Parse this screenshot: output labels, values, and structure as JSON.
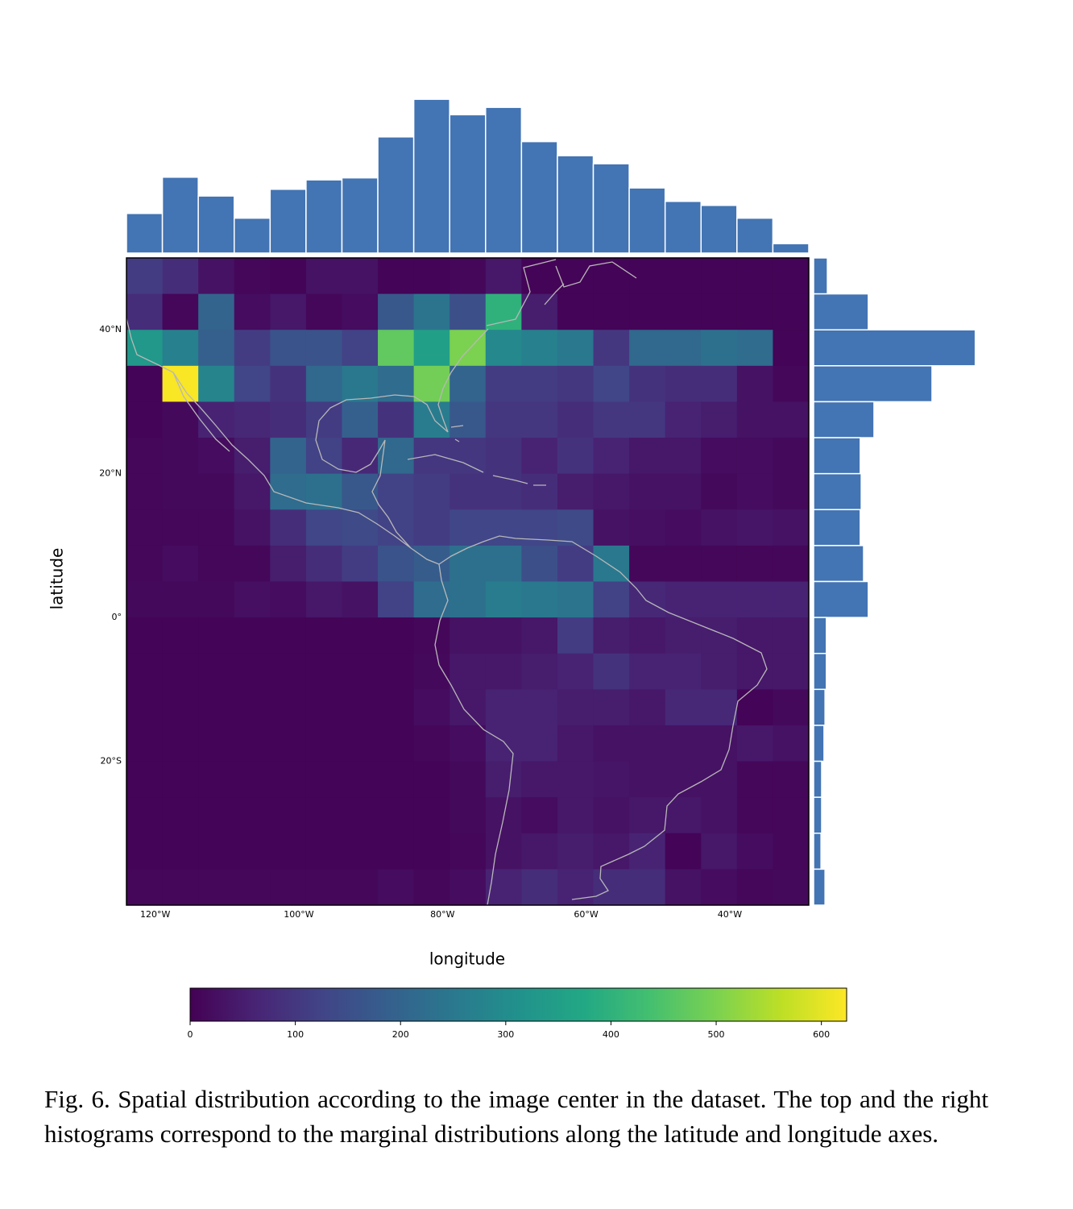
{
  "chart_data": [
    {
      "type": "heatmap",
      "x_label": "longitude",
      "y_label": "latitude",
      "xlim": [
        -124,
        -29
      ],
      "ylim": [
        -40,
        50
      ],
      "xticks": [
        {
          "value": -120,
          "label": "120°W"
        },
        {
          "value": -100,
          "label": "100°W"
        },
        {
          "value": -80,
          "label": "80°W"
        },
        {
          "value": -60,
          "label": "60°W"
        },
        {
          "value": -40,
          "label": "40°W"
        }
      ],
      "yticks": [
        {
          "value": 40,
          "label": "40°N"
        },
        {
          "value": 20,
          "label": "20°N"
        },
        {
          "value": 0,
          "label": "0°"
        },
        {
          "value": -20,
          "label": "20°S"
        }
      ],
      "x_bins": [
        -124,
        -119,
        -114,
        -109,
        -104,
        -99,
        -94,
        -89,
        -84,
        -79,
        -74,
        -69,
        -64,
        -59,
        -54,
        -49,
        -44,
        -39,
        -34,
        -29
      ],
      "y_bins": [
        50,
        45,
        40,
        35,
        30,
        25,
        20,
        15,
        10,
        5,
        0,
        -5,
        -10,
        -15,
        -20,
        -25,
        -30,
        -35,
        -40
      ],
      "z": [
        [
          110,
          80,
          30,
          10,
          5,
          30,
          30,
          5,
          5,
          10,
          40,
          5,
          5,
          5,
          5,
          5,
          5,
          5,
          5
        ],
        [
          80,
          10,
          200,
          20,
          40,
          10,
          20,
          170,
          240,
          150,
          400,
          50,
          5,
          5,
          5,
          5,
          5,
          5,
          5
        ],
        [
          330,
          270,
          190,
          110,
          160,
          160,
          120,
          470,
          350,
          500,
          290,
          270,
          250,
          100,
          210,
          210,
          230,
          220,
          5
        ],
        [
          5,
          620,
          280,
          130,
          90,
          210,
          250,
          220,
          490,
          200,
          110,
          110,
          100,
          130,
          90,
          80,
          80,
          30,
          10
        ],
        [
          5,
          15,
          60,
          70,
          80,
          110,
          190,
          90,
          260,
          170,
          100,
          100,
          80,
          100,
          100,
          60,
          50,
          30,
          30
        ],
        [
          10,
          15,
          20,
          50,
          200,
          120,
          70,
          210,
          100,
          100,
          90,
          60,
          90,
          60,
          40,
          40,
          20,
          20,
          15
        ],
        [
          10,
          15,
          15,
          40,
          220,
          230,
          170,
          120,
          110,
          90,
          90,
          80,
          50,
          40,
          30,
          30,
          15,
          20,
          15
        ],
        [
          10,
          10,
          10,
          30,
          80,
          130,
          140,
          120,
          110,
          130,
          130,
          130,
          140,
          30,
          25,
          20,
          30,
          35,
          30
        ],
        [
          10,
          20,
          10,
          10,
          50,
          80,
          110,
          160,
          180,
          230,
          230,
          150,
          110,
          250,
          10,
          10,
          10,
          10,
          10
        ],
        [
          15,
          15,
          15,
          25,
          20,
          40,
          30,
          120,
          220,
          230,
          260,
          250,
          240,
          120,
          70,
          60,
          60,
          60,
          60
        ],
        [
          5,
          5,
          5,
          5,
          5,
          5,
          5,
          5,
          10,
          30,
          30,
          40,
          110,
          50,
          40,
          50,
          50,
          40,
          40
        ],
        [
          5,
          5,
          5,
          5,
          5,
          5,
          5,
          5,
          15,
          40,
          40,
          50,
          60,
          90,
          60,
          60,
          50,
          40,
          40
        ],
        [
          5,
          5,
          5,
          5,
          5,
          5,
          5,
          5,
          20,
          40,
          60,
          60,
          50,
          50,
          40,
          70,
          70,
          5,
          15
        ],
        [
          5,
          5,
          5,
          5,
          5,
          5,
          5,
          5,
          10,
          20,
          60,
          60,
          40,
          30,
          30,
          30,
          30,
          40,
          30
        ],
        [
          5,
          5,
          5,
          5,
          5,
          5,
          5,
          5,
          5,
          15,
          50,
          40,
          40,
          35,
          30,
          30,
          30,
          10,
          10
        ],
        [
          5,
          5,
          5,
          5,
          5,
          5,
          5,
          5,
          5,
          15,
          30,
          20,
          40,
          30,
          40,
          40,
          30,
          10,
          10
        ],
        [
          5,
          5,
          5,
          5,
          5,
          5,
          5,
          5,
          5,
          10,
          30,
          40,
          50,
          40,
          60,
          5,
          40,
          20,
          10
        ],
        [
          10,
          10,
          10,
          10,
          10,
          10,
          10,
          20,
          10,
          20,
          60,
          80,
          60,
          80,
          80,
          30,
          20,
          10,
          15
        ]
      ],
      "clim": [
        0,
        624
      ],
      "cticks": [
        0,
        100,
        200,
        300,
        400,
        500,
        600
      ],
      "colormap": [
        "#440154",
        "#482475",
        "#414487",
        "#355f8d",
        "#2a788e",
        "#21918c",
        "#22a884",
        "#44bf70",
        "#7ad151",
        "#bddf26",
        "#fde725"
      ]
    },
    {
      "type": "histogram",
      "orientation": "vertical",
      "color": "#4374b3",
      "bins": [
        -124,
        -119,
        -114,
        -109,
        -104,
        -99,
        -94,
        -89,
        -84,
        -79,
        -74,
        -69,
        -64,
        -59,
        -54,
        -49,
        -44,
        -39,
        -34,
        -29
      ],
      "values": [
        590,
        1130,
        850,
        520,
        950,
        1090,
        1120,
        1730,
        2290,
        2060,
        2170,
        1660,
        1450,
        1330,
        970,
        770,
        710,
        520,
        140
      ],
      "xlim": [
        -124,
        -29
      ],
      "ylim": [
        0,
        2400
      ]
    },
    {
      "type": "histogram",
      "orientation": "horizontal",
      "color": "#4374b3",
      "bins": [
        50,
        45,
        40,
        35,
        30,
        25,
        20,
        15,
        10,
        5,
        0,
        -5,
        -10,
        -15,
        -20,
        -25,
        -30,
        -35,
        -40
      ],
      "values": [
        410,
        1630,
        4820,
        3530,
        1800,
        1390,
        1420,
        1390,
        1490,
        1630,
        380,
        380,
        340,
        310,
        240,
        240,
        220,
        340
      ],
      "ylim": [
        -40,
        50
      ],
      "xlim": [
        0,
        4900
      ]
    }
  ],
  "caption": "Fig. 6.  Spatial distribution according to the image center in the dataset. The top and the right histograms correspond to the marginal distributions along the latitude and longitude axes."
}
